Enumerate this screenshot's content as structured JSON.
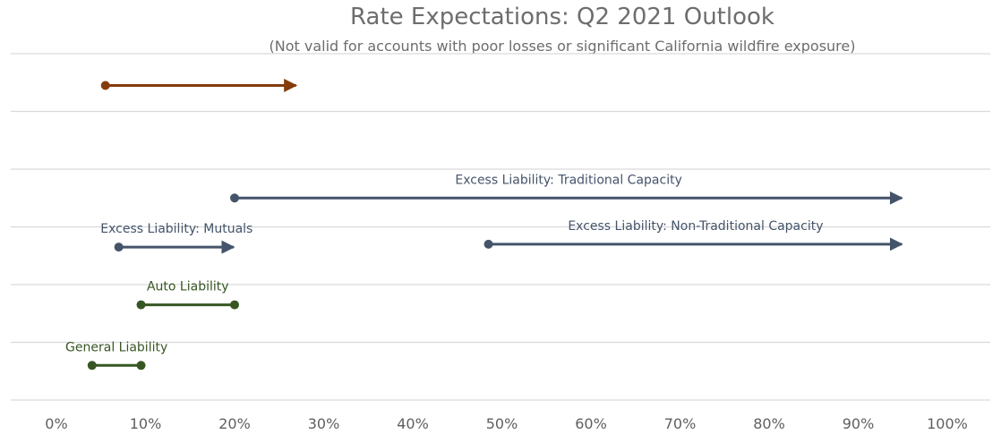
{
  "chart_data": {
    "type": "range-arrow",
    "title": "Rate Expectations: Q2 2021 Outlook",
    "subtitle": "(Not valid for accounts with poor losses or significant California wildfire exposure)",
    "xlabel": "",
    "ylabel": "",
    "xlim": [
      0,
      100
    ],
    "x_ticks": [
      "0%",
      "10%",
      "20%",
      "30%",
      "40%",
      "50%",
      "60%",
      "70%",
      "80%",
      "90%",
      "100%"
    ],
    "grid": true,
    "legend": "none",
    "series": [
      {
        "name": "",
        "low": 5.5,
        "high": 27,
        "open_ended": true,
        "row": 0.55,
        "color": "#843c0c"
      },
      {
        "name": "Excess Liability: Traditional Capacity",
        "low": 20,
        "high": 95,
        "open_ended": true,
        "row": 2.5,
        "color": "#44546a"
      },
      {
        "name": "Excess Liability: Mutuals",
        "low": 7,
        "high": 20,
        "open_ended": true,
        "row": 3.35,
        "color": "#44546a"
      },
      {
        "name": "Excess Liability: Non-Traditional Capacity",
        "low": 48.5,
        "high": 95,
        "open_ended": true,
        "row": 3.3,
        "color": "#44546a"
      },
      {
        "name": "Auto Liability",
        "low": 9.5,
        "high": 20,
        "open_ended": false,
        "row": 4.35,
        "color": "#375623"
      },
      {
        "name": "General Liability",
        "low": 4,
        "high": 9.5,
        "open_ended": false,
        "row": 5.4,
        "color": "#375623"
      }
    ]
  }
}
